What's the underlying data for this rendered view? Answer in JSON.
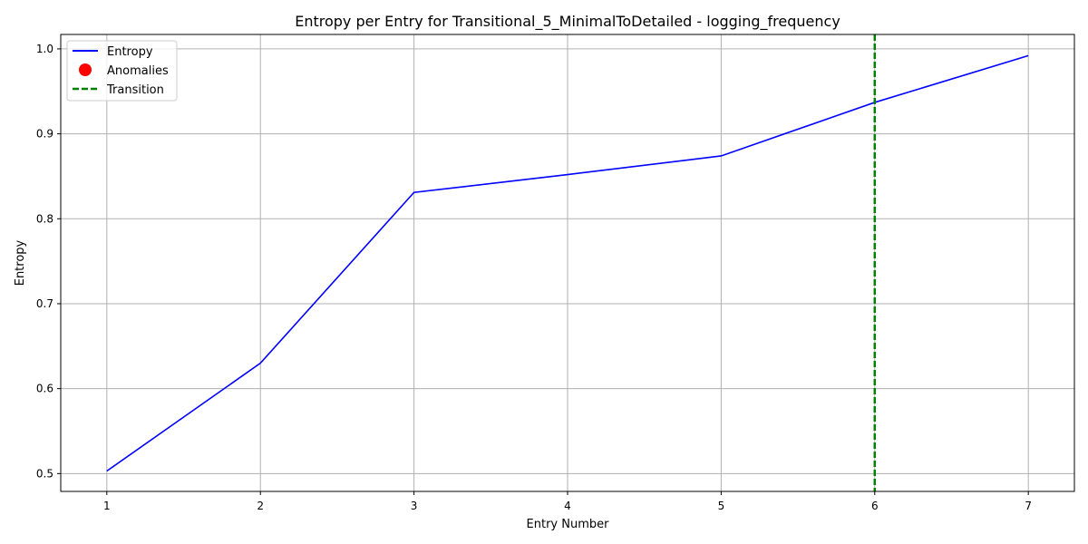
{
  "chart_data": {
    "type": "line",
    "title": "Entropy per Entry for Transitional_5_MinimalToDetailed - logging_frequency",
    "xlabel": "Entry Number",
    "ylabel": "Entropy",
    "x": [
      1,
      2,
      3,
      4,
      5,
      6,
      7
    ],
    "xlim": [
      0.7,
      7.3
    ],
    "ylim": [
      0.479,
      1.017
    ],
    "x_ticks": [
      "1",
      "2",
      "3",
      "4",
      "5",
      "6",
      "7"
    ],
    "y_ticks": [
      "0.5",
      "0.6",
      "0.7",
      "0.8",
      "0.9",
      "1.0"
    ],
    "grid": true,
    "legend_position": "top-left",
    "series": [
      {
        "name": "Entropy",
        "values": [
          0.503,
          0.63,
          0.831,
          0.852,
          0.874,
          0.937,
          0.992
        ],
        "color": "#0000ff",
        "style": "solid"
      }
    ],
    "anomalies": {
      "name": "Anomalies",
      "color": "#ff0000",
      "points": []
    },
    "transition": {
      "name": "Transition",
      "x": 6,
      "color": "#008000",
      "style": "dashed"
    }
  }
}
